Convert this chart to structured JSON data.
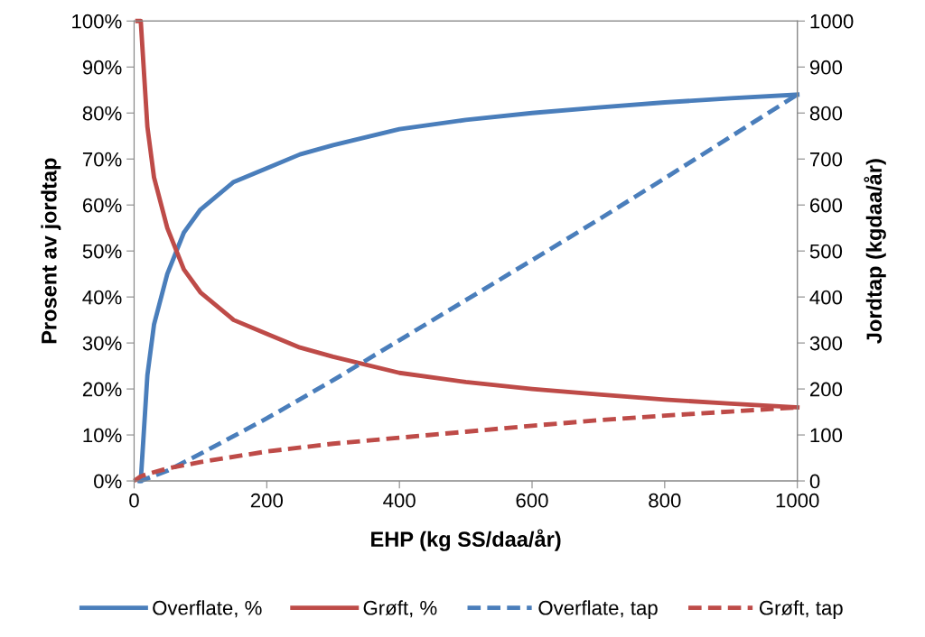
{
  "chart_data": {
    "type": "line",
    "xlabel": "EHP (kg SS/daa/år)",
    "ylabel": "Prosent av jordtap",
    "y2label": "Jordtap (kgdaa/år)",
    "xlim": [
      0,
      1000
    ],
    "xticks": [
      0,
      200,
      400,
      600,
      800,
      1000
    ],
    "ylim": [
      0,
      100
    ],
    "yticks": [
      {
        "value": 0,
        "label": "0%"
      },
      {
        "value": 10,
        "label": "10%"
      },
      {
        "value": 20,
        "label": "20%"
      },
      {
        "value": 30,
        "label": "30%"
      },
      {
        "value": 40,
        "label": "40%"
      },
      {
        "value": 50,
        "label": "50%"
      },
      {
        "value": 60,
        "label": "60%"
      },
      {
        "value": 70,
        "label": "70%"
      },
      {
        "value": 80,
        "label": "80%"
      },
      {
        "value": 90,
        "label": "90%"
      },
      {
        "value": 100,
        "label": "100%"
      }
    ],
    "y2lim": [
      0,
      1000
    ],
    "y2ticks": [
      0,
      100,
      200,
      300,
      400,
      500,
      600,
      700,
      800,
      900,
      1000
    ],
    "grid": false,
    "legend": "bottom",
    "series": [
      {
        "name": "Overflate, %",
        "color": "#4a7ebb",
        "line_style": "solid",
        "x": [
          10,
          20,
          30,
          50,
          75,
          100,
          150,
          200,
          250,
          300,
          400,
          500,
          600,
          700,
          800,
          900,
          1000
        ],
        "values": [
          0,
          23,
          34,
          45,
          54,
          59,
          65,
          68,
          71,
          73,
          76.5,
          78.5,
          80,
          81.2,
          82.3,
          83.2,
          84
        ]
      },
      {
        "name": "Grøft, %",
        "color": "#be4b48",
        "line_style": "solid",
        "x": [
          5,
          10,
          20,
          30,
          50,
          75,
          100,
          150,
          200,
          250,
          300,
          400,
          500,
          600,
          700,
          800,
          900,
          1000
        ],
        "values": [
          100,
          100,
          77,
          66,
          55,
          46,
          41,
          35,
          32,
          29,
          27,
          23.5,
          21.5,
          20,
          18.8,
          17.7,
          16.8,
          16
        ]
      },
      {
        "name": "Overflate, tap",
        "color": "#4a7ebb",
        "line_style": "dashed",
        "axis": "y2",
        "x": [
          5,
          10,
          50,
          100,
          200,
          300,
          400,
          500,
          600,
          700,
          800,
          900,
          1000
        ],
        "values": [
          0,
          0,
          22,
          59,
          136,
          219,
          306,
          393,
          480,
          568,
          658,
          749,
          840
        ]
      },
      {
        "name": "Grøft, tap",
        "color": "#be4b48",
        "line_style": "dashed",
        "axis": "y2",
        "x": [
          0,
          10,
          20,
          50,
          100,
          200,
          300,
          400,
          500,
          600,
          700,
          800,
          900,
          1000
        ],
        "values": [
          0,
          10,
          15,
          27,
          41,
          64,
          81,
          94,
          107,
          120,
          132,
          142,
          151,
          160
        ]
      }
    ]
  }
}
